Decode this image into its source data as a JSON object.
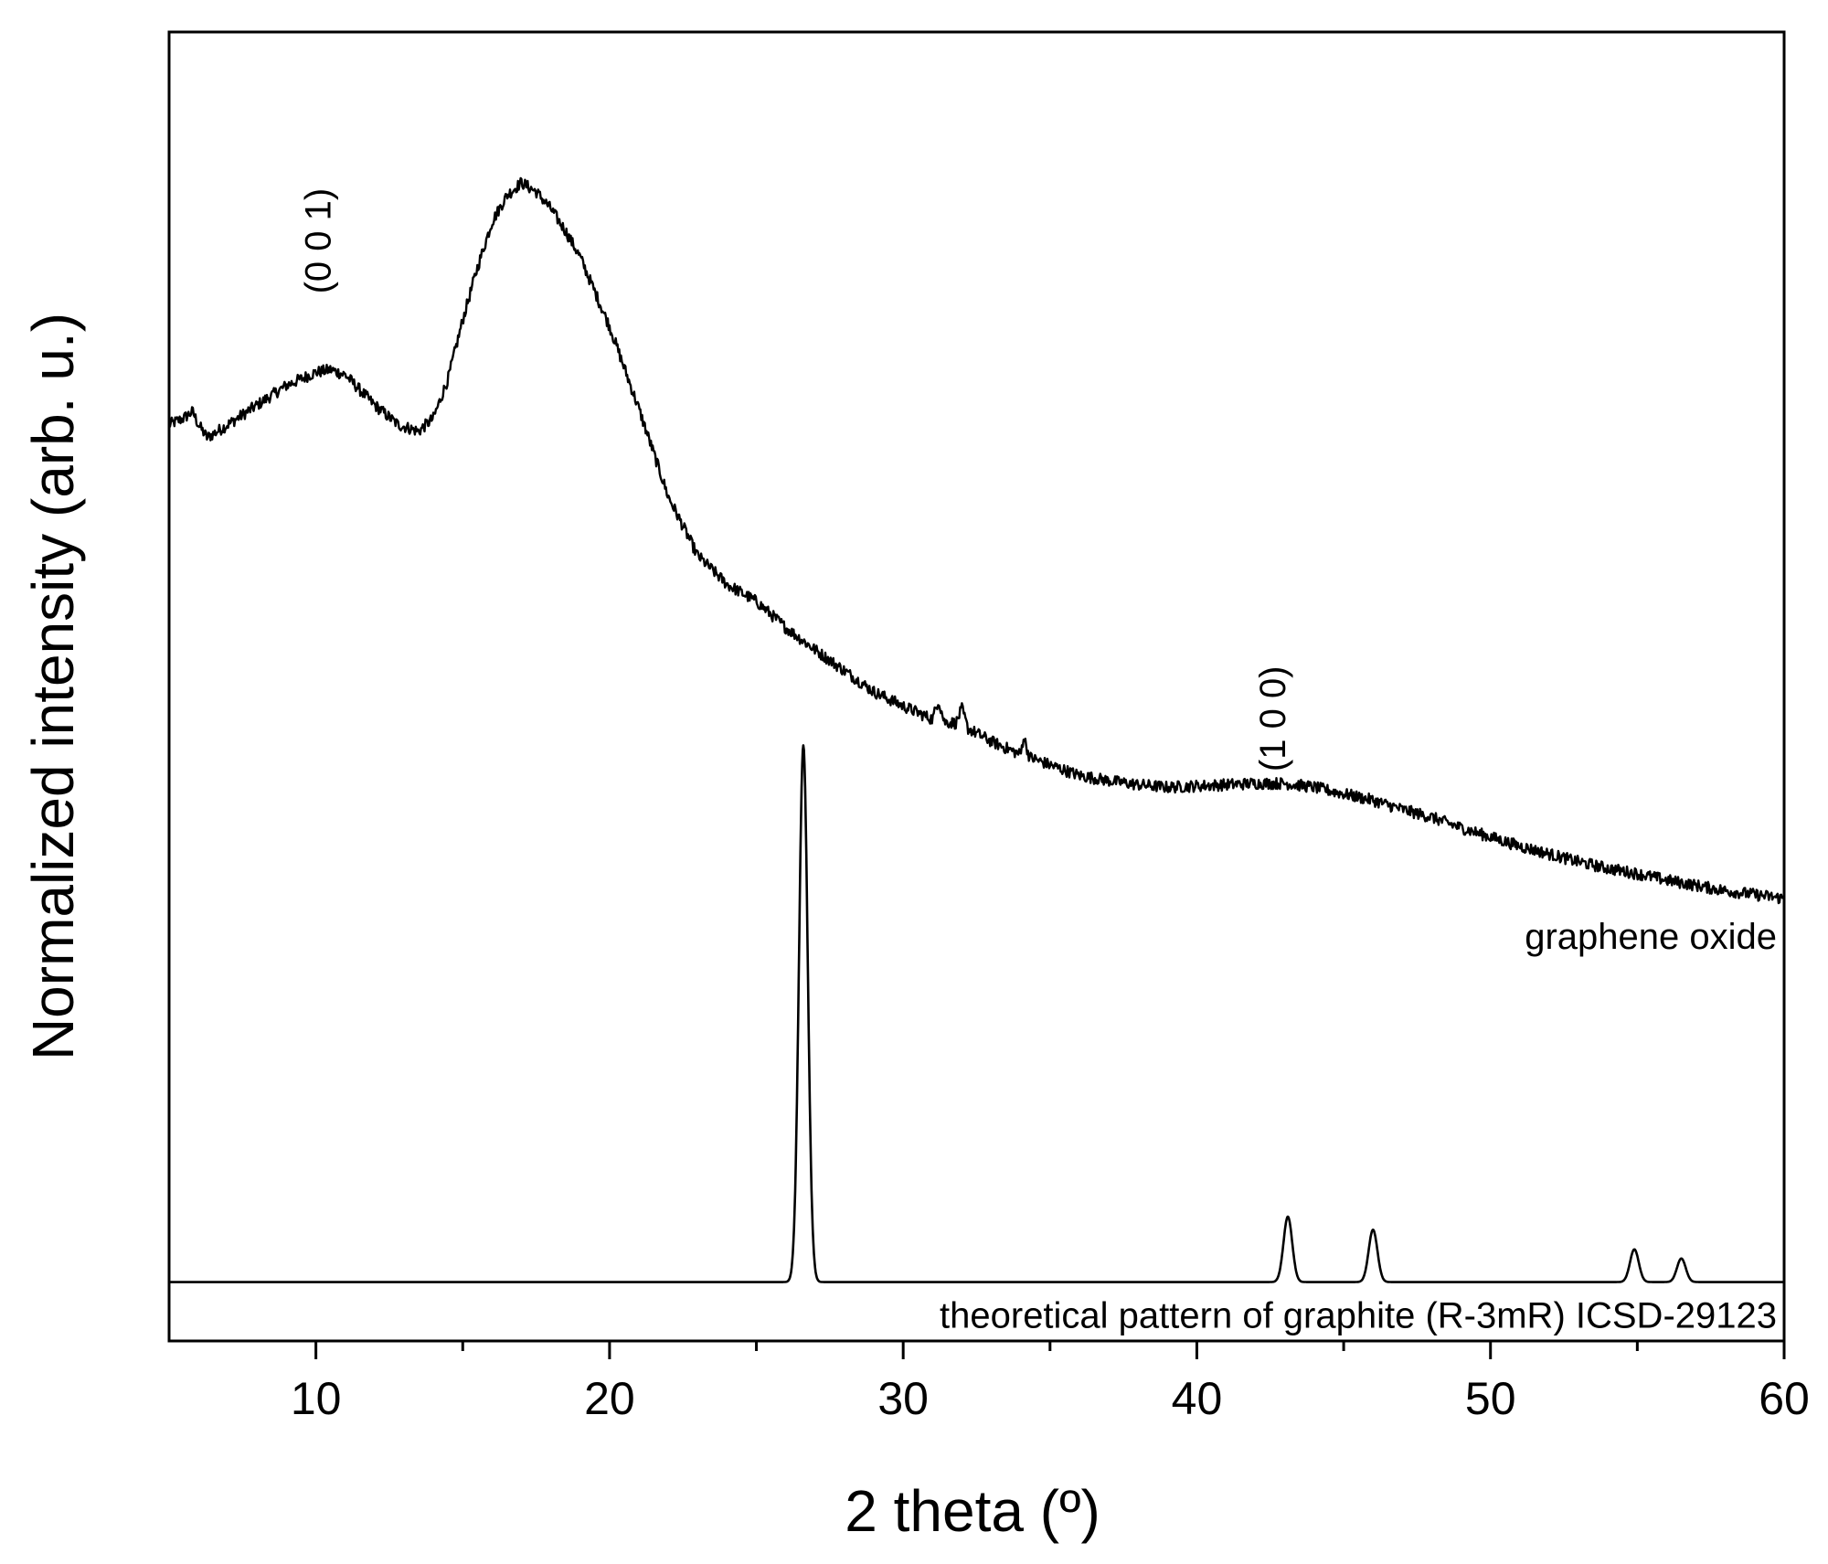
{
  "chart_data": {
    "type": "line",
    "xlabel": "2 theta (º)",
    "ylabel": "Normalized intensity (arb. u.)",
    "xlim": [
      5,
      60
    ],
    "x_ticks": [
      10,
      20,
      30,
      40,
      50,
      60
    ],
    "x_minor_ticks": [
      15,
      25,
      35,
      45,
      55
    ],
    "y_ticks_shown": false,
    "legend": "none",
    "series": [
      {
        "name": "graphene oxide",
        "color": "#000000",
        "noisy": true,
        "points": [
          [
            5.0,
            0.7
          ],
          [
            5.5,
            0.705
          ],
          [
            5.8,
            0.71
          ],
          [
            6.0,
            0.7
          ],
          [
            6.3,
            0.69
          ],
          [
            7.0,
            0.7
          ],
          [
            8.0,
            0.715
          ],
          [
            9.0,
            0.73
          ],
          [
            10.0,
            0.74
          ],
          [
            10.5,
            0.742
          ],
          [
            11.0,
            0.738
          ],
          [
            12.0,
            0.715
          ],
          [
            12.8,
            0.7
          ],
          [
            13.5,
            0.695
          ],
          [
            14.0,
            0.705
          ],
          [
            14.5,
            0.735
          ],
          [
            15.0,
            0.78
          ],
          [
            15.5,
            0.82
          ],
          [
            16.0,
            0.855
          ],
          [
            16.5,
            0.875
          ],
          [
            17.0,
            0.885
          ],
          [
            17.5,
            0.878
          ],
          [
            18.0,
            0.865
          ],
          [
            18.5,
            0.848
          ],
          [
            19.0,
            0.828
          ],
          [
            20.0,
            0.775
          ],
          [
            21.0,
            0.712
          ],
          [
            22.0,
            0.645
          ],
          [
            23.0,
            0.6
          ],
          [
            24.0,
            0.578
          ],
          [
            25.0,
            0.565
          ],
          [
            26.0,
            0.545
          ],
          [
            27.0,
            0.528
          ],
          [
            28.0,
            0.512
          ],
          [
            29.0,
            0.496
          ],
          [
            30.0,
            0.485
          ],
          [
            31.0,
            0.475
          ],
          [
            31.2,
            0.49
          ],
          [
            31.4,
            0.473
          ],
          [
            31.8,
            0.472
          ],
          [
            32.0,
            0.483
          ],
          [
            32.2,
            0.468
          ],
          [
            33.0,
            0.458
          ],
          [
            34.0,
            0.448
          ],
          [
            34.1,
            0.462
          ],
          [
            34.3,
            0.446
          ],
          [
            35.0,
            0.44
          ],
          [
            36.0,
            0.432
          ],
          [
            37.0,
            0.428
          ],
          [
            38.0,
            0.425
          ],
          [
            39.0,
            0.423
          ],
          [
            40.0,
            0.424
          ],
          [
            41.0,
            0.425
          ],
          [
            42.0,
            0.426
          ],
          [
            43.0,
            0.426
          ],
          [
            44.0,
            0.423
          ],
          [
            45.0,
            0.418
          ],
          [
            46.0,
            0.413
          ],
          [
            47.0,
            0.406
          ],
          [
            48.0,
            0.4
          ],
          [
            49.0,
            0.392
          ],
          [
            50.0,
            0.385
          ],
          [
            51.0,
            0.378
          ],
          [
            52.0,
            0.372
          ],
          [
            53.0,
            0.366
          ],
          [
            54.0,
            0.361
          ],
          [
            55.0,
            0.357
          ],
          [
            56.0,
            0.352
          ],
          [
            57.0,
            0.348
          ],
          [
            58.0,
            0.344
          ],
          [
            59.0,
            0.341
          ],
          [
            60.0,
            0.338
          ]
        ]
      },
      {
        "name": "theoretical pattern of graphite (R-3mR) ICSD-29123",
        "color": "#000000",
        "noisy": false,
        "baseline": 0.045,
        "peaks": [
          {
            "x": 26.6,
            "height": 0.41,
            "fwhm": 0.35
          },
          {
            "x": 43.1,
            "height": 0.05,
            "fwhm": 0.35
          },
          {
            "x": 46.0,
            "height": 0.04,
            "fwhm": 0.35
          },
          {
            "x": 54.9,
            "height": 0.025,
            "fwhm": 0.35
          },
          {
            "x": 56.5,
            "height": 0.018,
            "fwhm": 0.35
          }
        ]
      }
    ],
    "annotations": [
      {
        "text": "(0 0 1)",
        "x": 10.5,
        "y": 0.8,
        "rotation": -90
      },
      {
        "text": "(1 0 0)",
        "x": 43.0,
        "y": 0.435,
        "rotation": -90
      }
    ]
  }
}
